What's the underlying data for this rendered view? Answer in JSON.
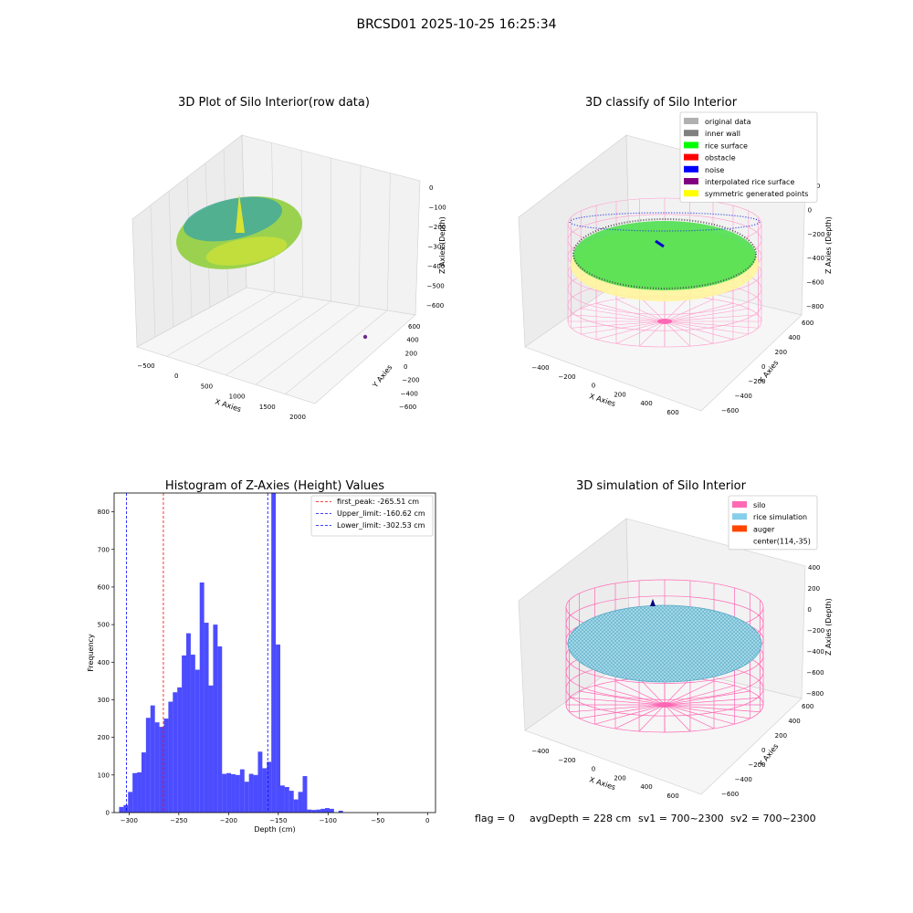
{
  "suptitle": "BRCSD01 2025-10-25 16:25:34",
  "footer": {
    "flag": "flag = 0",
    "avg": "avgDepth = 228 cm",
    "sv1": "sv1 = 700~2300",
    "sv2": "sv2 = 700~2300"
  },
  "colors": {
    "original": "#b0b0b0",
    "wall": "#808080",
    "rice": "#00ff00",
    "obstacle": "#ff0000",
    "noise": "#0000ff",
    "interp": "#800080",
    "sym": "#ffff00",
    "silo": "#ff69b4",
    "ricesim": "#87ceeb",
    "auger": "#ff4500",
    "hist": "#0000ff"
  },
  "chart_data": [
    {
      "type": "scatter",
      "title": "3D Plot of Silo Interior(row data)",
      "xlabel": "X Axies",
      "ylabel": "Y Axies",
      "zlabel": "Z Axies (Depth)",
      "xticks": [
        "−500",
        "0",
        "500",
        "1000",
        "1500",
        "2000"
      ],
      "yticks": [
        "−600",
        "−400",
        "−200",
        "0",
        "200",
        "400",
        "600"
      ],
      "zticks": [
        "0",
        "−100",
        "−200",
        "−300",
        "−400",
        "−500",
        "−600"
      ],
      "xlim": [
        -600,
        2100
      ],
      "ylim": [
        -700,
        700
      ],
      "zlim": [
        -650,
        0
      ],
      "outlier": {
        "x": 2000,
        "y": 0,
        "z": -600
      }
    },
    {
      "type": "scatter",
      "title": "3D classify of Silo Interior",
      "xlabel": "X Axies",
      "ylabel": "Y Axies",
      "zlabel": "Z Axies (Depth)",
      "xticks": [
        "−400",
        "−200",
        "0",
        "200",
        "400",
        "600"
      ],
      "yticks": [
        "−600",
        "−400",
        "−200",
        "0",
        "200",
        "400",
        "600"
      ],
      "zticks": [
        "200",
        "0",
        "−200",
        "−400",
        "−600",
        "−800"
      ],
      "legend": [
        {
          "label": "original data",
          "color": "#b0b0b0"
        },
        {
          "label": "inner wall",
          "color": "#808080"
        },
        {
          "label": "rice surface",
          "color": "#00ff00"
        },
        {
          "label": "obstacle",
          "color": "#ff0000"
        },
        {
          "label": "noise",
          "color": "#0000ff"
        },
        {
          "label": "interpolated rice surface",
          "color": "#800080"
        },
        {
          "label": "symmetric generated points",
          "color": "#ffff00"
        }
      ]
    },
    {
      "type": "bar",
      "title": "Histogram of Z-Axies (Height) Values",
      "xlabel": "Depth (cm)",
      "ylabel": "Frequency",
      "xlim": [
        -315,
        8
      ],
      "ylim": [
        0,
        850
      ],
      "xticks": [
        -300,
        -250,
        -200,
        -150,
        -100,
        -50,
        0
      ],
      "yticks": [
        0,
        100,
        200,
        300,
        400,
        500,
        600,
        700,
        800
      ],
      "bin_start": -310,
      "bin_width": 4.5,
      "values": [
        15,
        20,
        55,
        105,
        107,
        160,
        252,
        285,
        240,
        228,
        250,
        295,
        320,
        333,
        418,
        477,
        420,
        380,
        612,
        505,
        338,
        500,
        442,
        103,
        105,
        102,
        100,
        115,
        82,
        103,
        100,
        162,
        118,
        135,
        860,
        447,
        72,
        68,
        58,
        35,
        55,
        97,
        8,
        7,
        8,
        10,
        12,
        10,
        0,
        5
      ],
      "vlines": [
        {
          "label": "first_peak: -265.51 cm",
          "x": -265.51,
          "color": "#ff0000"
        },
        {
          "label": "Upper_limit: -160.62 cm",
          "x": -160.62,
          "color": "#0000ff"
        },
        {
          "label": "Lower_limit: -302.53 cm",
          "x": -302.53,
          "color": "#0000ff"
        }
      ]
    },
    {
      "type": "scatter",
      "title": "3D simulation of Silo Interior",
      "xlabel": "X Axies",
      "ylabel": "Y Axies",
      "zlabel": "Z Axies (Depth)",
      "xticks": [
        "−400",
        "−200",
        "0",
        "200",
        "400",
        "600"
      ],
      "yticks": [
        "−600",
        "−400",
        "−200",
        "0",
        "200",
        "400",
        "600"
      ],
      "zticks": [
        "400",
        "200",
        "0",
        "−200",
        "−400",
        "−600",
        "−800"
      ],
      "legend": [
        {
          "label": "silo",
          "color": "#ff69b4"
        },
        {
          "label": "rice simulation",
          "color": "#87ceeb"
        },
        {
          "label": "auger",
          "color": "#ff4500"
        },
        {
          "label": "center(114,-35)",
          "color": ""
        }
      ]
    }
  ]
}
